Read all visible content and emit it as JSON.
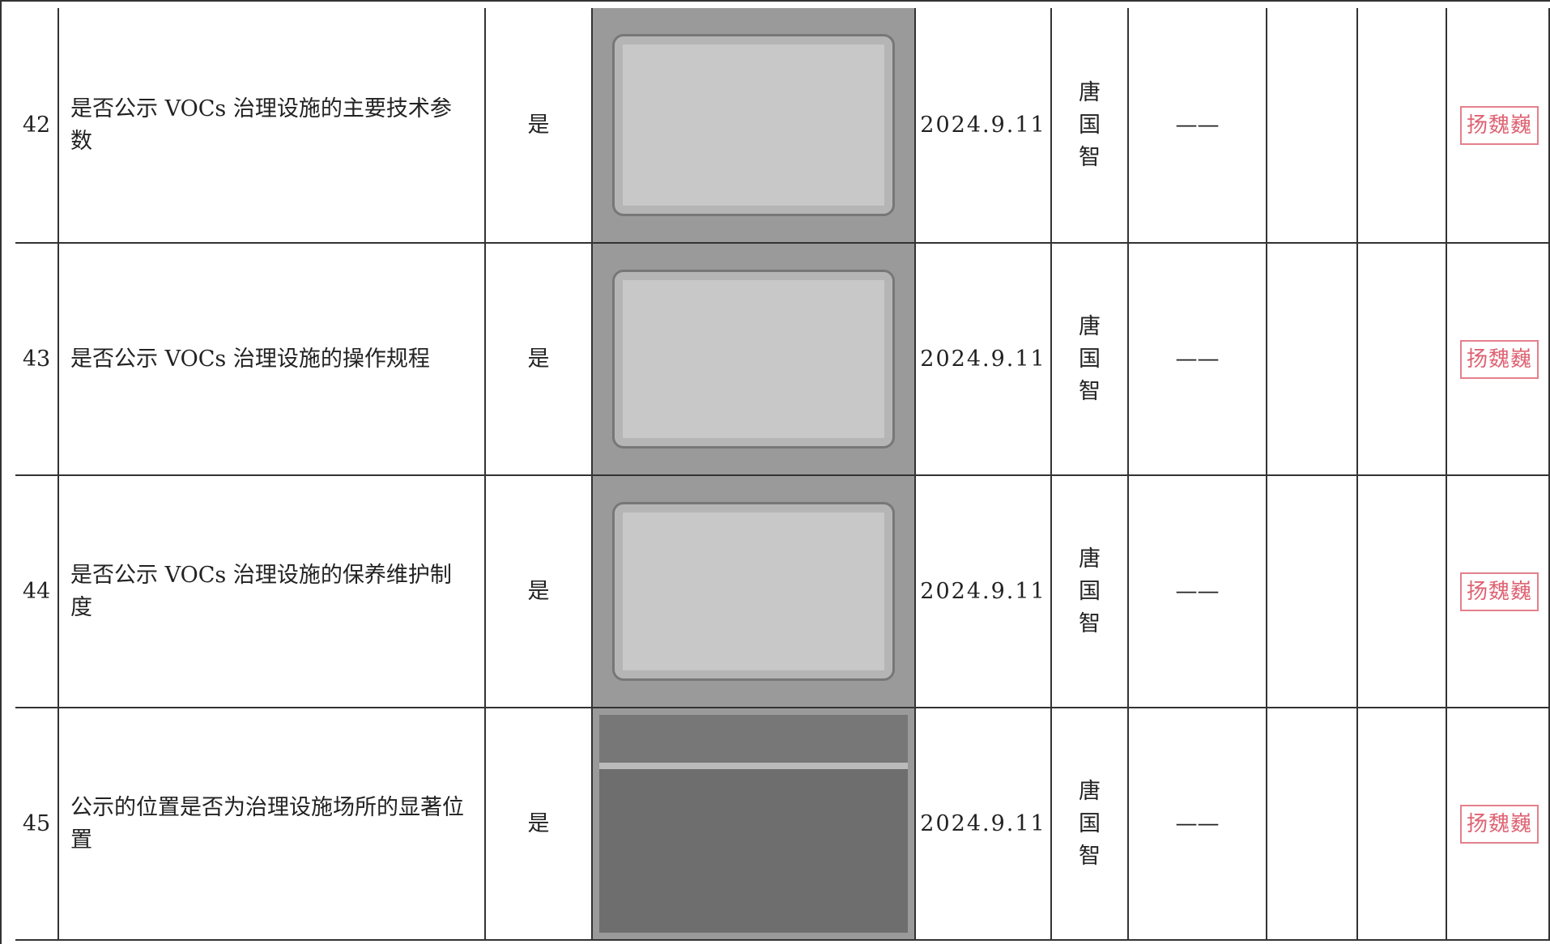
{
  "table": {
    "rows": [
      {
        "no": "42",
        "item": "是否公示 VOCs 治理设施的主要技术参数",
        "answer": "是",
        "date": "2024.9.11",
        "person": "唐国智",
        "remark": "——",
        "stamp": "扬魏巍"
      },
      {
        "no": "43",
        "item": "是否公示 VOCs 治理设施的操作规程",
        "answer": "是",
        "date": "2024.9.11",
        "person": "唐国智",
        "remark": "——",
        "stamp": "扬魏巍"
      },
      {
        "no": "44",
        "item": "是否公示 VOCs 治理设施的保养维护制度",
        "answer": "是",
        "date": "2024.9.11",
        "person": "唐国智",
        "remark": "——",
        "stamp": "扬魏巍"
      },
      {
        "no": "45",
        "item": "公示的位置是否为治理设施场所的显著位置",
        "answer": "是",
        "date": "2024.9.11",
        "person": "唐国智",
        "remark": "——",
        "stamp": "扬魏巍"
      }
    ]
  }
}
